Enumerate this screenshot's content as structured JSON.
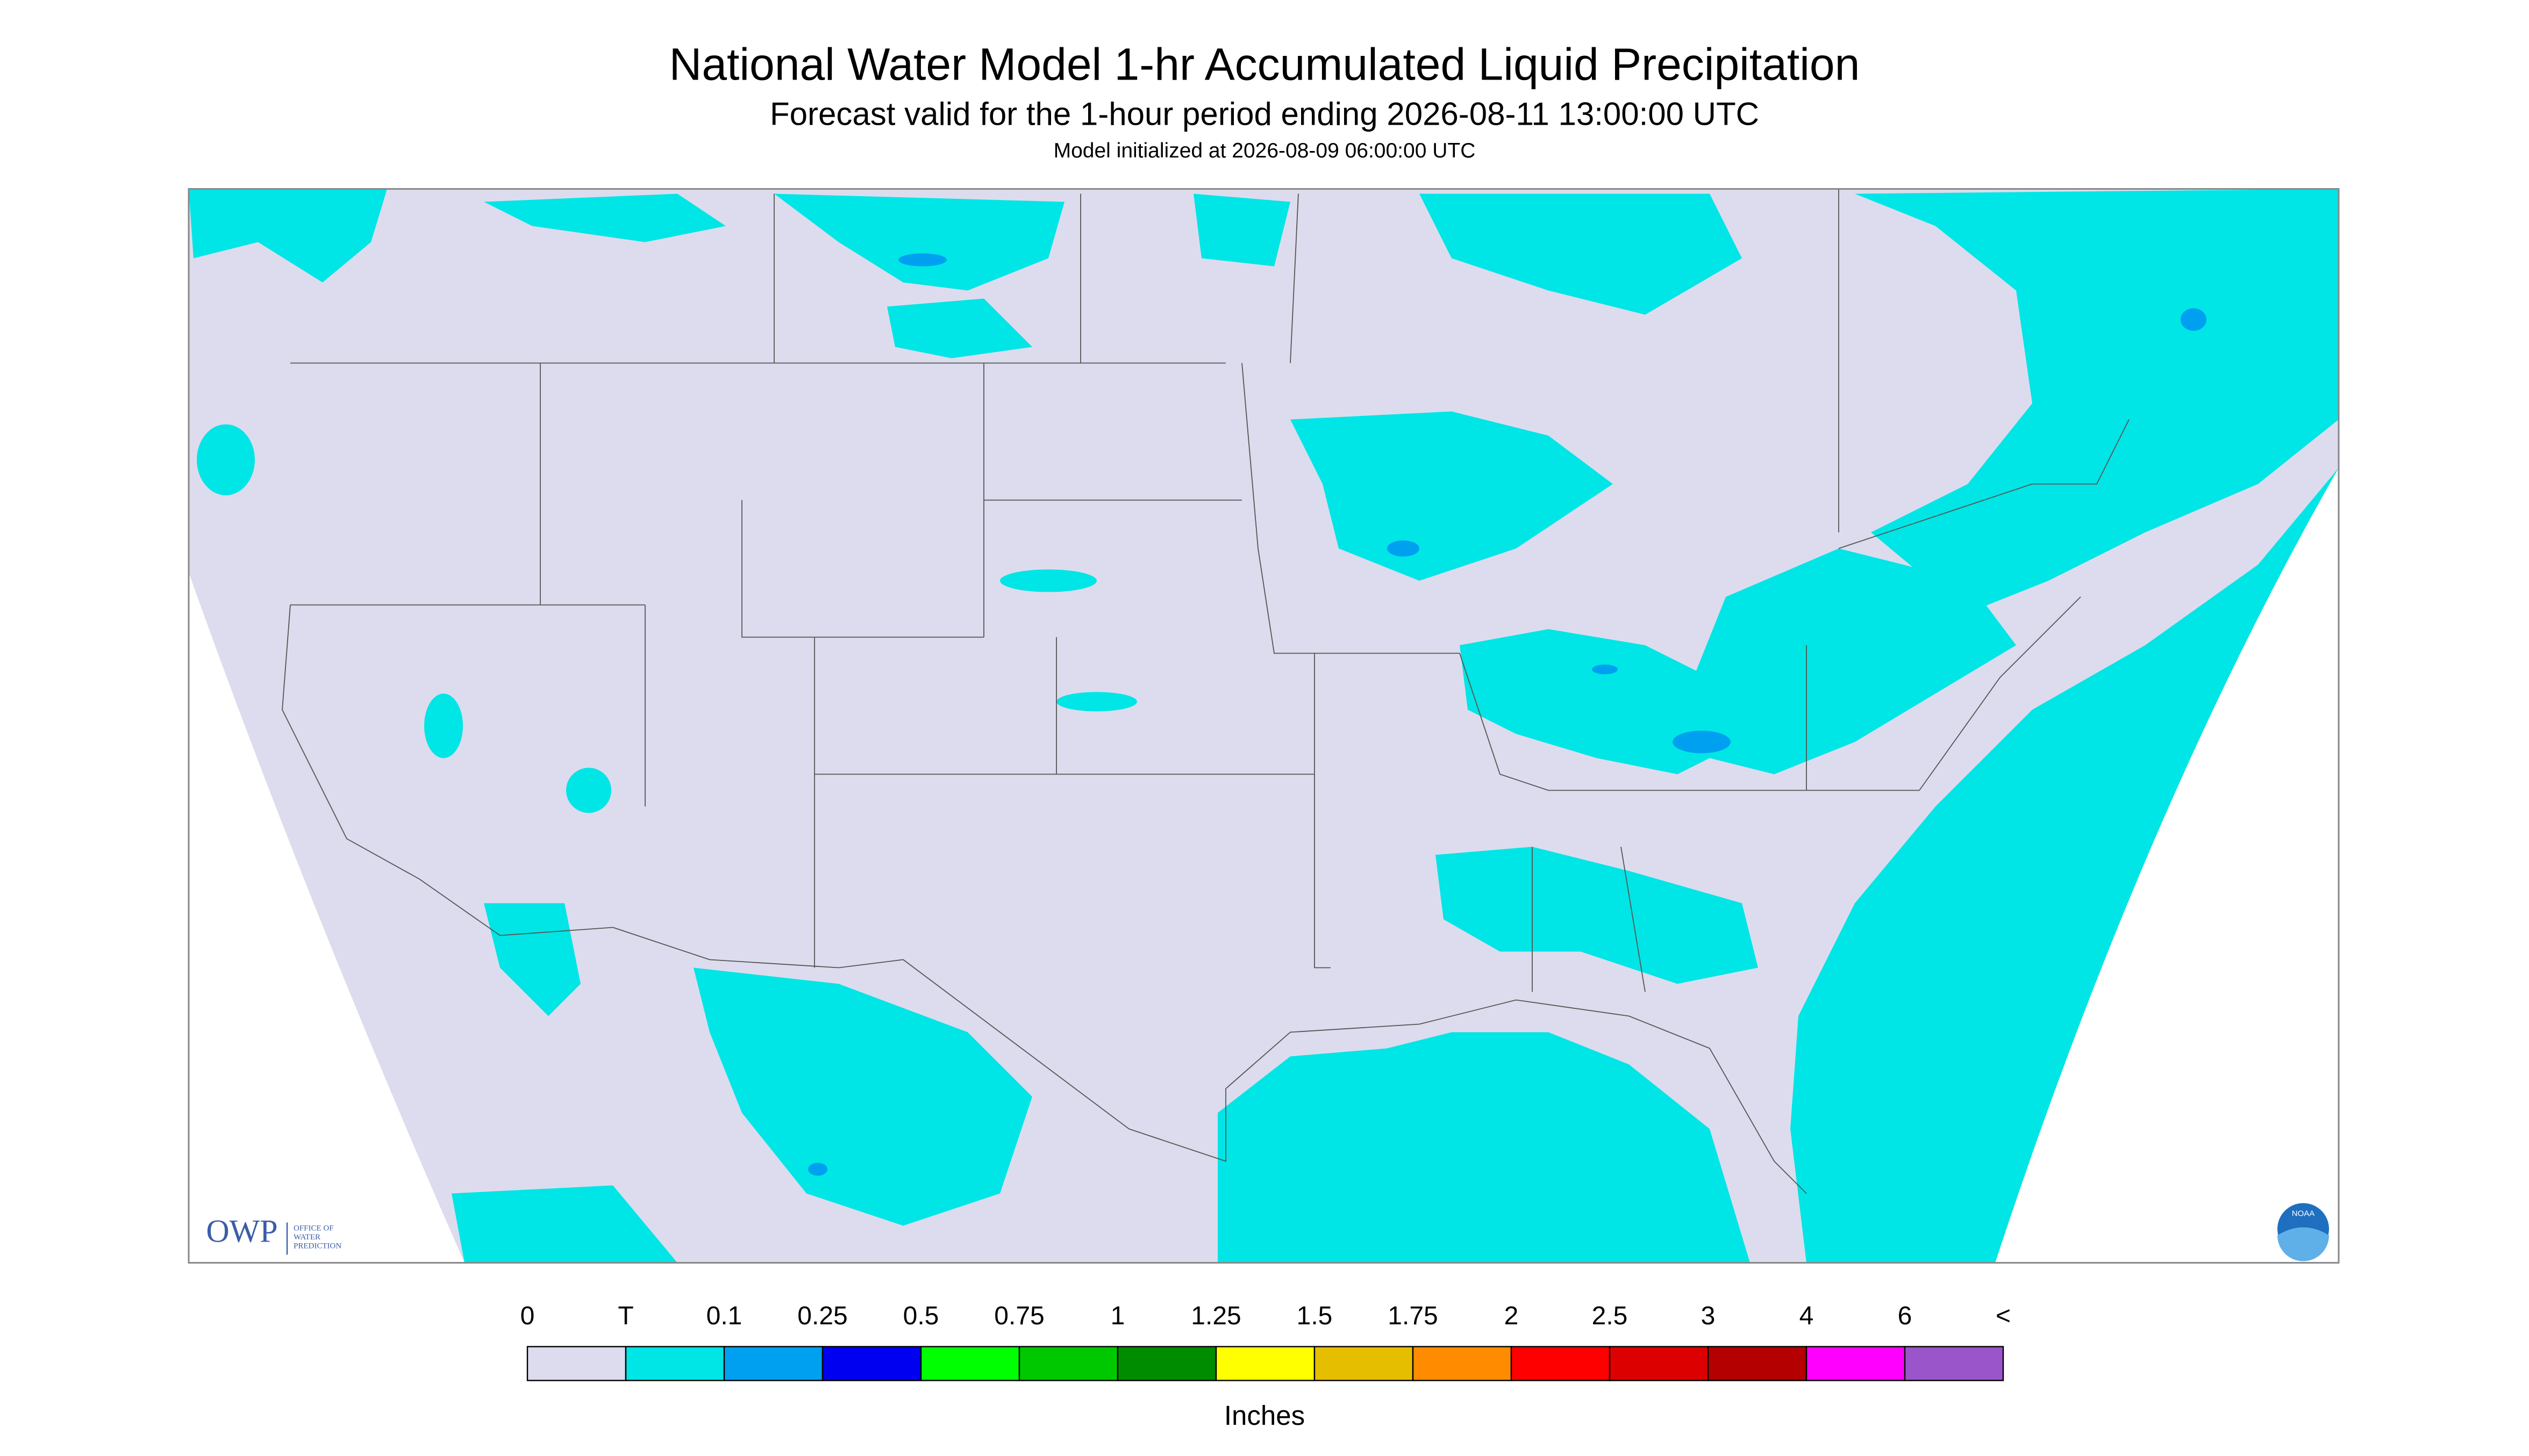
{
  "header": {
    "title": "National Water Model 1-hr Accumulated Liquid Precipitation",
    "subtitle": "Forecast valid for the 1-hour period ending 2026-08-11 13:00:00 UTC",
    "init": "Model initialized at 2026-08-09 06:00:00 UTC"
  },
  "legend": {
    "labels": [
      "0",
      "T",
      "0.1",
      "0.25",
      "0.5",
      "0.75",
      "1",
      "1.25",
      "1.5",
      "1.75",
      "2",
      "2.5",
      "3",
      "4",
      "6",
      "<"
    ],
    "colors": [
      "#dcdcee",
      "#00e5e5",
      "#00a0f0",
      "#0000f0",
      "#00ff00",
      "#00c800",
      "#008c00",
      "#ffff00",
      "#e6be00",
      "#ff8c00",
      "#ff0000",
      "#dc0000",
      "#b40000",
      "#ff00ff",
      "#9955c9"
    ],
    "units": "Inches"
  },
  "logos": {
    "owp": "OWP",
    "owp_lines": [
      "OFFICE OF",
      "WATER",
      "PREDICTION"
    ],
    "noaa": "NOAA"
  }
}
